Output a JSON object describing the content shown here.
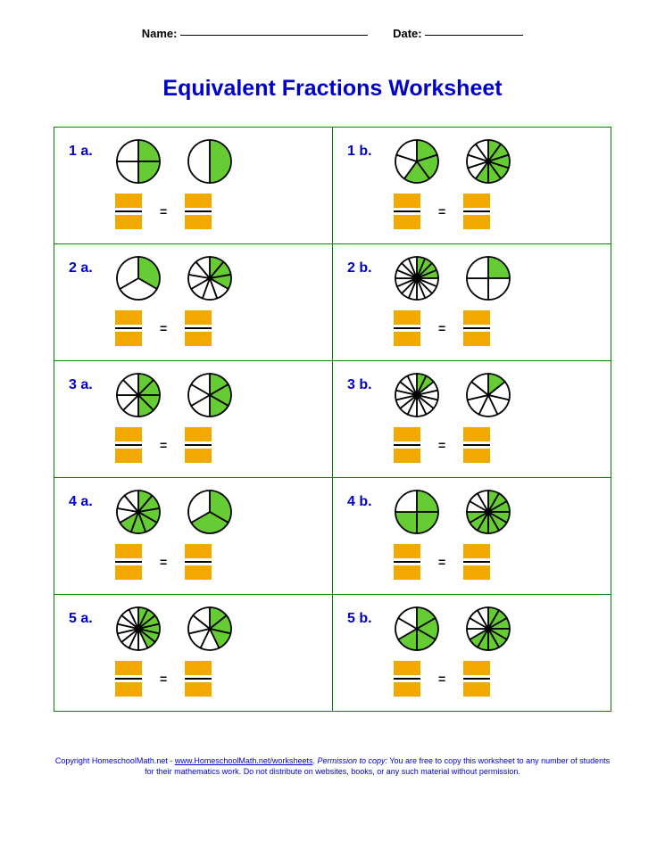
{
  "header": {
    "name_label": "Name:",
    "date_label": "Date:",
    "name_blank_width": 210,
    "date_blank_width": 110
  },
  "title": "Equivalent Fractions Worksheet",
  "colors": {
    "title": "#0000cc",
    "label": "#0000cc",
    "grid_border": "#008000",
    "pie_fill": "#66cc33",
    "pie_empty": "#ffffff",
    "pie_stroke": "#000000",
    "blank_box": "#f1a900",
    "footer_text": "#0000cc",
    "footer_link": "#0000cc"
  },
  "pie_radius": 24,
  "pie_stroke_width": 1.8,
  "equals_sign": "=",
  "problems": [
    {
      "label": "1 a.",
      "pies": [
        {
          "slices": 4,
          "filled": 2,
          "start": 90
        },
        {
          "slices": 2,
          "filled": 1,
          "start": 90
        }
      ]
    },
    {
      "label": "1 b.",
      "pies": [
        {
          "slices": 5,
          "filled": 3,
          "start": 90
        },
        {
          "slices": 10,
          "filled": 6,
          "start": 90
        }
      ]
    },
    {
      "label": "2 a.",
      "pies": [
        {
          "slices": 3,
          "filled": 1,
          "start": 90
        },
        {
          "slices": 9,
          "filled": 3,
          "start": 90
        }
      ]
    },
    {
      "label": "2 b.",
      "pies": [
        {
          "slices": 16,
          "filled": 4,
          "start": 90
        },
        {
          "slices": 4,
          "filled": 1,
          "start": 90
        }
      ]
    },
    {
      "label": "3 a.",
      "pies": [
        {
          "slices": 8,
          "filled": 4,
          "start": 90
        },
        {
          "slices": 6,
          "filled": 3,
          "start": 90
        }
      ]
    },
    {
      "label": "3 b.",
      "pies": [
        {
          "slices": 14,
          "filled": 2,
          "start": 90
        },
        {
          "slices": 7,
          "filled": 1,
          "start": 90
        }
      ]
    },
    {
      "label": "4 a.",
      "pies": [
        {
          "slices": 9,
          "filled": 6,
          "start": 90
        },
        {
          "slices": 3,
          "filled": 2,
          "start": 90
        }
      ]
    },
    {
      "label": "4 b.",
      "pies": [
        {
          "slices": 4,
          "filled": 3,
          "start": 90
        },
        {
          "slices": 12,
          "filled": 9,
          "start": 90
        }
      ]
    },
    {
      "label": "5 a.",
      "pies": [
        {
          "slices": 14,
          "filled": 6,
          "start": 90
        },
        {
          "slices": 7,
          "filled": 3,
          "start": 90
        }
      ]
    },
    {
      "label": "5 b.",
      "pies": [
        {
          "slices": 6,
          "filled": 4,
          "start": 90
        },
        {
          "slices": 12,
          "filled": 8,
          "start": 90
        }
      ]
    }
  ],
  "footer": {
    "prefix": "Copyright HomeschoolMath.net - ",
    "link_text": "www.HomeschoolMath.net/worksheets",
    "mid": ". ",
    "perm_label": "Permission to copy:",
    "rest": " You are free to copy this worksheet to any number of students for their mathematics work. Do not distribute on websites, books, or any such material without permission."
  }
}
